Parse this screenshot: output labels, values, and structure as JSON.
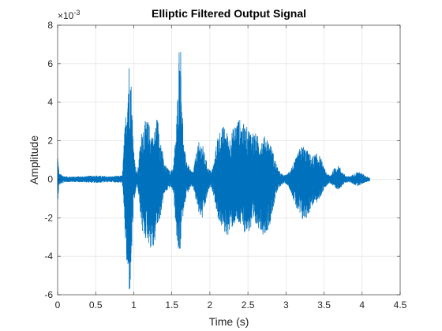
{
  "chart_data": {
    "type": "line",
    "title": "Elliptic Filtered Output Signal",
    "xlabel": "Time (s)",
    "ylabel": "Amplitude",
    "y_exponent_label": "×10",
    "y_exponent_power": "-3",
    "xlim": [
      0,
      4.5
    ],
    "ylim": [
      -6,
      8
    ],
    "xticks": [
      0,
      0.5,
      1,
      1.5,
      2,
      2.5,
      3,
      3.5,
      4,
      4.5
    ],
    "xtick_labels": [
      "0",
      "0.5",
      "1",
      "1.5",
      "2",
      "2.5",
      "3",
      "3.5",
      "4",
      "4.5"
    ],
    "yticks": [
      -6,
      -4,
      -2,
      0,
      2,
      4,
      6,
      8
    ],
    "ytick_labels": [
      "-6",
      "-4",
      "-2",
      "0",
      "2",
      "4",
      "6",
      "8"
    ],
    "grid": true,
    "series": [
      {
        "color": "#0072BD",
        "x": [
          0,
          0.02,
          0.1,
          0.3,
          0.5,
          0.7,
          0.85,
          0.88,
          0.91,
          0.93,
          0.95,
          0.97,
          0.99,
          1.01,
          1.03,
          1.05,
          1.08,
          1.11,
          1.14,
          1.18,
          1.22,
          1.26,
          1.3,
          1.33,
          1.36,
          1.4,
          1.44,
          1.48,
          1.52,
          1.56,
          1.58,
          1.6,
          1.62,
          1.64,
          1.66,
          1.7,
          1.74,
          1.78,
          1.82,
          1.86,
          1.9,
          1.94,
          1.98,
          2.02,
          2.06,
          2.1,
          2.14,
          2.18,
          2.22,
          2.26,
          2.3,
          2.34,
          2.38,
          2.42,
          2.46,
          2.5,
          2.54,
          2.58,
          2.62,
          2.66,
          2.7,
          2.74,
          2.78,
          2.82,
          2.86,
          2.9,
          2.94,
          2.98,
          3.02,
          3.06,
          3.1,
          3.14,
          3.18,
          3.22,
          3.26,
          3.3,
          3.34,
          3.38,
          3.42,
          3.46,
          3.5,
          3.54,
          3.58,
          3.62,
          3.66,
          3.7,
          3.74,
          3.78,
          3.82,
          3.86,
          3.9,
          3.94,
          3.98,
          4.02,
          4.06,
          4.1
        ],
        "env_upper": [
          1.4,
          0.3,
          0.15,
          0.15,
          0.2,
          0.15,
          0.2,
          2.5,
          4.5,
          6.0,
          6.6,
          4.8,
          2.4,
          1.2,
          0.5,
          0.4,
          1.6,
          2.8,
          3.0,
          3.1,
          2.7,
          2.2,
          3.3,
          3.0,
          2.0,
          0.8,
          0.6,
          0.4,
          0.7,
          2.8,
          5.0,
          7.5,
          6.8,
          3.8,
          1.6,
          1.0,
          0.5,
          0.4,
          1.4,
          2.0,
          1.9,
          1.2,
          0.6,
          0.4,
          1.0,
          2.3,
          2.6,
          2.8,
          2.5,
          2.2,
          2.6,
          3.0,
          3.2,
          3.0,
          2.8,
          2.7,
          2.6,
          2.5,
          2.3,
          2.1,
          2.2,
          2.3,
          2.0,
          1.6,
          1.0,
          0.5,
          0.3,
          0.2,
          0.3,
          0.6,
          0.8,
          1.2,
          1.6,
          1.8,
          1.6,
          1.4,
          1.2,
          1.3,
          1.4,
          1.1,
          0.6,
          0.3,
          0.2,
          0.5,
          0.7,
          0.7,
          0.4,
          0.2,
          0.15,
          0.2,
          0.3,
          0.4,
          0.35,
          0.25,
          0.15,
          0.1
        ],
        "env_lower": [
          -1.2,
          -0.3,
          -0.15,
          -0.15,
          -0.2,
          -0.15,
          -0.2,
          -2.5,
          -4.8,
          -5.9,
          -6.0,
          -4.4,
          -2.2,
          -1.2,
          -0.5,
          -0.4,
          -1.5,
          -2.8,
          -3.1,
          -3.2,
          -3.6,
          -3.8,
          -2.6,
          -2.4,
          -1.8,
          -0.8,
          -0.6,
          -0.4,
          -0.7,
          -2.8,
          -4.1,
          -4.2,
          -3.3,
          -2.2,
          -1.4,
          -0.8,
          -0.5,
          -0.4,
          -1.2,
          -1.9,
          -2.1,
          -1.4,
          -0.6,
          -0.4,
          -1.0,
          -2.0,
          -2.4,
          -2.7,
          -3.0,
          -2.8,
          -2.5,
          -2.3,
          -2.4,
          -2.6,
          -2.8,
          -2.8,
          -2.7,
          -2.6,
          -2.5,
          -2.6,
          -2.9,
          -2.8,
          -2.5,
          -1.8,
          -1.0,
          -0.5,
          -0.3,
          -0.2,
          -0.3,
          -0.6,
          -1.1,
          -1.6,
          -2.0,
          -2.2,
          -2.1,
          -1.8,
          -1.4,
          -1.3,
          -1.2,
          -0.9,
          -0.5,
          -0.3,
          -0.2,
          -0.4,
          -0.6,
          -0.5,
          -0.35,
          -0.2,
          -0.15,
          -0.2,
          -0.3,
          -0.35,
          -0.3,
          -0.2,
          -0.15,
          -0.1
        ]
      }
    ]
  }
}
